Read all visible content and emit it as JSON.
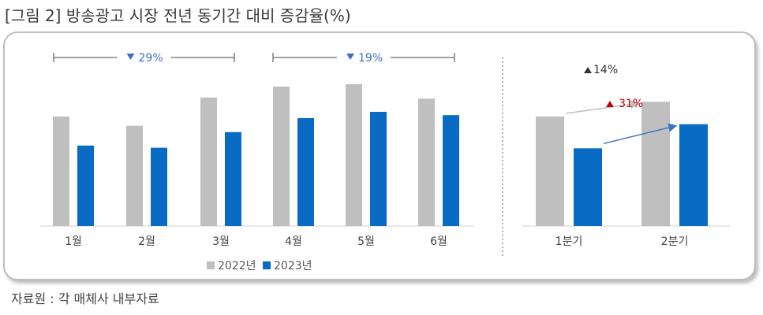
{
  "figure": {
    "title": "[그림 2] 방송광고 시장 전년 동기간 대비 증감율(%)",
    "source": "자료원 : 각 매체사 내부자료"
  },
  "colors": {
    "series_2022": "#bfbfbf",
    "series_2023": "#0a6bc4",
    "bracket_label": "#3a6fc0",
    "down_marker": "#3a6fc0",
    "up_marker_dark": "#333333",
    "up_marker_red": "#c00000",
    "arrow_grey": "#bfbfbf",
    "arrow_blue": "#3a73c8"
  },
  "chart_data": [
    {
      "type": "bar",
      "categories": [
        "1월",
        "2월",
        "3월",
        "4월",
        "5월",
        "6월"
      ],
      "series": [
        {
          "name": "2022년",
          "values": [
            100,
            91.6,
            117.4,
            127.4,
            129.6,
            116.4
          ]
        },
        {
          "name": "2023년",
          "values": [
            73.5,
            71.5,
            85.8,
            98.6,
            104.3,
            101.3
          ]
        }
      ],
      "ylim": [
        0,
        150
      ],
      "grid": false,
      "legend": {
        "position": "bottom",
        "labels": [
          "2022년",
          "2023년"
        ]
      },
      "annotations": [
        {
          "range": [
            "1월",
            "3월"
          ],
          "marker": "down",
          "text": "29%"
        },
        {
          "range": [
            "4월",
            "6월"
          ],
          "marker": "down",
          "text": "19%"
        }
      ]
    },
    {
      "type": "bar",
      "categories": [
        "1분기",
        "2분기"
      ],
      "series": [
        {
          "name": "2022년",
          "values": [
            100,
            113.5
          ]
        },
        {
          "name": "2023년",
          "values": [
            71,
            93
          ]
        }
      ],
      "ylim": [
        0,
        150
      ],
      "grid": false,
      "annotations": [
        {
          "from": "1분기 2022년",
          "to": "2분기 2022년",
          "marker": "up",
          "text": "14%"
        },
        {
          "from": "1분기 2023년",
          "to": "2분기 2023년",
          "marker": "up",
          "text": "31%"
        }
      ]
    }
  ]
}
